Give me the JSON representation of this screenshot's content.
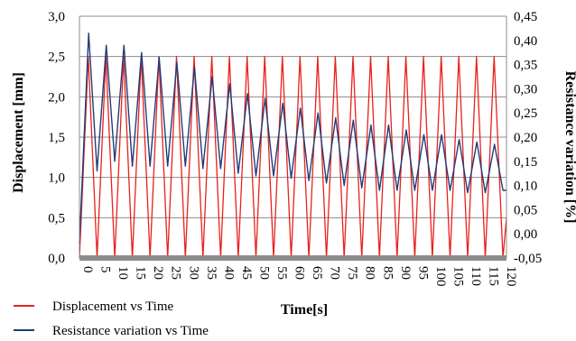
{
  "chart_data": {
    "type": "line",
    "xlabel": "Time[s]",
    "ylabel": "Displacement [mm]",
    "y2label": "Resistance variation [%]",
    "xlim": [
      0,
      121
    ],
    "ylim": [
      0,
      3.0
    ],
    "y2lim": [
      -0.05,
      0.45
    ],
    "grid": true,
    "legend_position": "bottom-left",
    "x_ticks": [
      "0",
      "5",
      "10",
      "15",
      "20",
      "25",
      "30",
      "35",
      "40",
      "45",
      "50",
      "55",
      "60",
      "65",
      "70",
      "75",
      "80",
      "85",
      "90",
      "95",
      "100",
      "105",
      "110",
      "115",
      "120"
    ],
    "y_ticks": [
      "0,0",
      "0,5",
      "1,0",
      "1,5",
      "2,0",
      "2,5",
      "3,0"
    ],
    "y2_ticks": [
      "-0,05",
      "0,00",
      "0,05",
      "0,10",
      "0,15",
      "0,20",
      "0,25",
      "0,30",
      "0,35",
      "0,40",
      "0,45"
    ],
    "series": [
      {
        "name": "Displacement vs Time",
        "axis": "left",
        "color": "#e8211d",
        "x": [
          0,
          2.5,
          5,
          7.5,
          10,
          12.5,
          15,
          17.5,
          20,
          22.5,
          25,
          27.5,
          30,
          32.5,
          35,
          37.5,
          40,
          42.5,
          45,
          47.5,
          50,
          52.5,
          55,
          57.5,
          60,
          62.5,
          65,
          67.5,
          70,
          72.5,
          75,
          77.5,
          80,
          82.5,
          85,
          87.5,
          90,
          92.5,
          95,
          97.5,
          100,
          102.5,
          105,
          107.5,
          110,
          112.5,
          115,
          117.5,
          120,
          121
        ],
        "values": [
          0,
          2.5,
          0,
          2.5,
          0,
          2.5,
          0,
          2.5,
          0,
          2.5,
          0,
          2.5,
          0,
          2.5,
          0,
          2.5,
          0,
          2.5,
          0,
          2.5,
          0,
          2.5,
          0,
          2.5,
          0,
          2.5,
          0,
          2.5,
          0,
          2.5,
          0,
          2.5,
          0,
          2.5,
          0,
          2.5,
          0,
          2.5,
          0,
          2.5,
          0,
          2.5,
          0,
          2.5,
          0,
          2.5,
          0,
          2.5,
          0,
          0.5
        ]
      },
      {
        "name": "Resistance variation vs Time",
        "axis": "right",
        "color": "#1f3d7a",
        "x": [
          0,
          2.6,
          5,
          7.6,
          10,
          12.6,
          15,
          17.6,
          20,
          22.6,
          25,
          27.6,
          30,
          32.6,
          35,
          37.6,
          40,
          42.6,
          45,
          47.6,
          50,
          52.6,
          55,
          57.6,
          60,
          62.6,
          65,
          67.6,
          70,
          72.6,
          75,
          77.6,
          80,
          82.6,
          85,
          87.6,
          90,
          92.6,
          95,
          97.6,
          100,
          102.6,
          105,
          107.6,
          110,
          112.6,
          115,
          117.6,
          120,
          121
        ],
        "values": [
          -0.02,
          0.415,
          0.13,
          0.39,
          0.15,
          0.39,
          0.14,
          0.375,
          0.14,
          0.365,
          0.14,
          0.355,
          0.14,
          0.345,
          0.135,
          0.325,
          0.135,
          0.31,
          0.125,
          0.29,
          0.12,
          0.28,
          0.12,
          0.27,
          0.115,
          0.26,
          0.11,
          0.25,
          0.105,
          0.24,
          0.1,
          0.235,
          0.095,
          0.225,
          0.09,
          0.225,
          0.09,
          0.215,
          0.09,
          0.205,
          0.09,
          0.205,
          0.09,
          0.195,
          0.085,
          0.19,
          0.085,
          0.185,
          0.09,
          0.09
        ]
      }
    ]
  }
}
